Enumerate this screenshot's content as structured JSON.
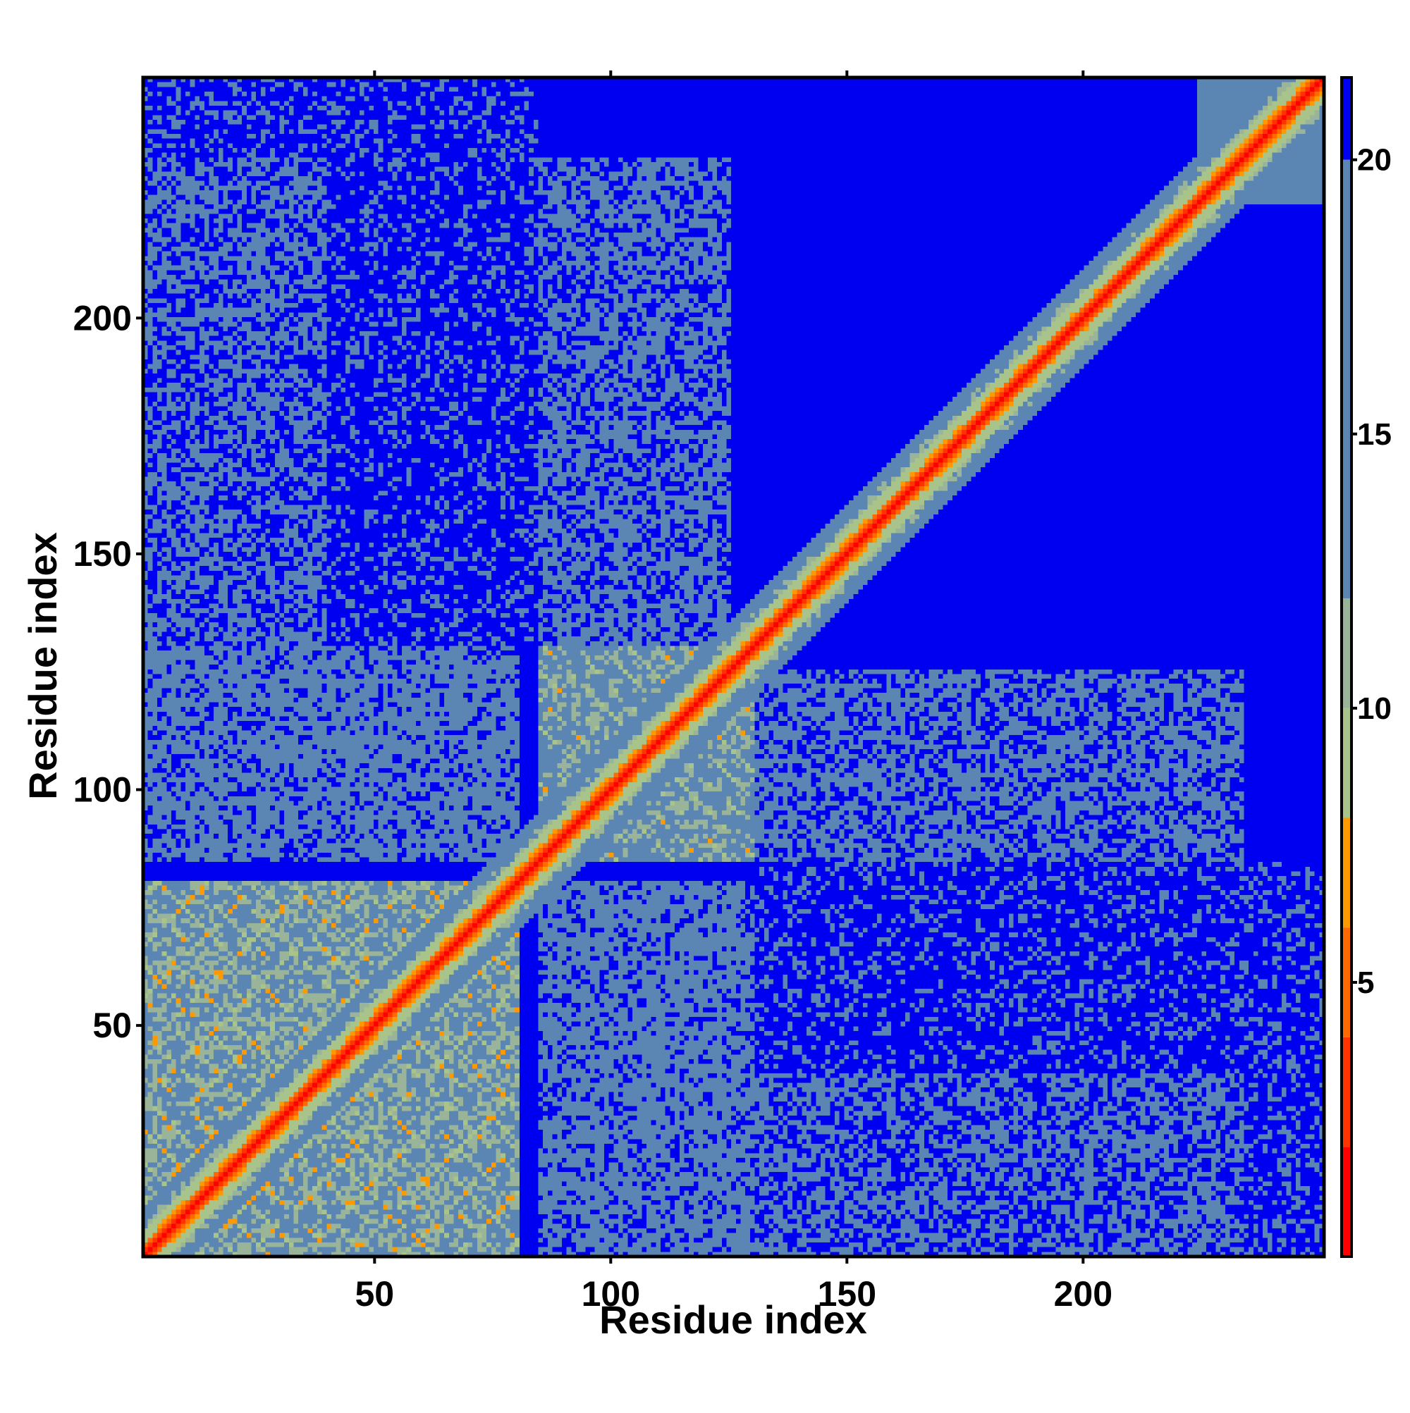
{
  "chart_data": {
    "type": "heatmap",
    "title": "",
    "xlabel": "Residue index",
    "ylabel": "Residue index",
    "xlim": [
      1,
      251
    ],
    "ylim": [
      1,
      251
    ],
    "n_residues": 251,
    "x_ticks": [
      50,
      100,
      150,
      200
    ],
    "y_ticks": [
      50,
      100,
      150,
      200
    ],
    "grid": false,
    "colorbar": {
      "position": "right",
      "range": [
        0,
        21.5
      ],
      "ticks": [
        5,
        10,
        15,
        20
      ],
      "colors": {
        "below_2": "#ff0000",
        "2_to_4": "#ff3300",
        "4_to_6": "#ff6a00",
        "6_to_8": "#ff9900",
        "8_to_10": "#a8c48a",
        "10_to_12": "#9ab49a",
        "12_to_20": "#5b86b4",
        "above_20": "#0000f0"
      }
    },
    "description_values": {
      "diagonal_distance": 0,
      "far_distance": 21,
      "mid_distance": 15,
      "contact_cutoff": 8
    },
    "domains": [
      {
        "start": 1,
        "end": 80
      },
      {
        "start": 85,
        "end": 130
      },
      {
        "start": 130,
        "end": 251
      }
    ]
  }
}
